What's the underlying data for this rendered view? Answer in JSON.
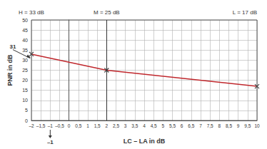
{
  "chart_data": {
    "type": "line",
    "x_label": "LC – LA in dB",
    "y_label": "PNR in dB",
    "series": [
      {
        "name": "PNR",
        "color": "#c0282d",
        "marker": "x",
        "x": [
          -2,
          2,
          10
        ],
        "values": [
          33,
          25,
          17
        ]
      }
    ],
    "xlim": [
      -2,
      10
    ],
    "xticks": [
      {
        "value": -2,
        "label": "–2"
      },
      {
        "value": -1.5,
        "label": "–1,5"
      },
      {
        "value": -1,
        "label": "–1"
      },
      {
        "value": -0.5,
        "label": "–0,5"
      },
      0,
      {
        "value": 0.5,
        "label": "0,5"
      },
      1,
      {
        "value": 1.5,
        "label": "1,5"
      },
      2,
      {
        "value": 2.5,
        "label": "2,5"
      },
      3,
      {
        "value": 3.5,
        "label": "3,5"
      },
      4,
      {
        "value": 4.5,
        "label": "4,5"
      },
      5,
      {
        "value": 5.5,
        "label": "5,5"
      },
      6,
      {
        "value": 6.5,
        "label": "6,5"
      },
      7,
      {
        "value": 7.5,
        "label": "7,5"
      },
      8,
      {
        "value": 8.5,
        "label": "8,5"
      },
      9,
      {
        "value": 9.5,
        "label": "9,5"
      },
      10
    ],
    "ylim": [
      0,
      50
    ],
    "yticks": [
      0,
      5,
      10,
      15,
      20,
      25,
      30,
      35,
      40,
      45,
      50
    ],
    "grid": true,
    "top_labels": [
      {
        "text": "H = 33 dB",
        "x": -2
      },
      {
        "text": "M = 25 dB",
        "x": 2
      },
      {
        "text": "L = 17 dB",
        "x": 10
      }
    ],
    "annotations": [
      {
        "text": "31",
        "y": 31
      },
      {
        "text": "–1",
        "x": -1
      }
    ]
  }
}
